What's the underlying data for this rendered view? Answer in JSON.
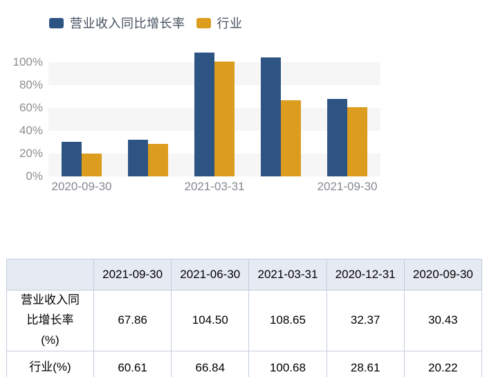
{
  "chart_data": {
    "type": "bar",
    "categories": [
      "2020-09-30",
      "2020-12-31",
      "2021-03-31",
      "2021-06-30",
      "2021-09-30"
    ],
    "x_tick_indices": [
      0,
      2,
      4
    ],
    "series": [
      {
        "id": "revenue-growth",
        "name": "营业收入同比增长率",
        "color": "#2e5483",
        "values": [
          30.43,
          32.37,
          108.65,
          104.5,
          67.86
        ]
      },
      {
        "id": "industry",
        "name": "行业",
        "color": "#dc9c1e",
        "values": [
          20.22,
          28.61,
          100.68,
          66.84,
          60.61
        ]
      }
    ],
    "y_ticks": [
      "0%",
      "20%",
      "40%",
      "60%",
      "80%",
      "100%"
    ],
    "ylim": [
      0,
      111
    ],
    "grid_bands": true,
    "legend_position": "top-left"
  },
  "table": {
    "columns": [
      "",
      "2021-09-30",
      "2021-06-30",
      "2021-03-31",
      "2020-12-31",
      "2020-09-30"
    ],
    "rows": [
      {
        "label": "营业收入同比增长率(%)",
        "values": [
          "67.86",
          "104.50",
          "108.65",
          "32.37",
          "30.43"
        ]
      },
      {
        "label": "行业(%)",
        "values": [
          "60.61",
          "66.84",
          "100.68",
          "28.61",
          "20.22"
        ]
      }
    ]
  },
  "colors": {
    "bar_blue": "#2e5483",
    "bar_gold": "#dc9c1e",
    "band_gray": "#f6f6f7",
    "table_header_bg": "#e6eaf3",
    "table_border": "#c4cddc",
    "axis_label": "#8d8d8d",
    "x_label": "#84888f",
    "legend_text": "#45505f"
  }
}
